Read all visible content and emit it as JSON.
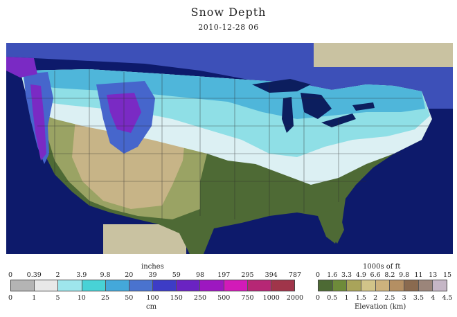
{
  "title": "Snow Depth",
  "subtitle": "2010-12-28 06",
  "snow_legend": {
    "top_unit": "inches",
    "bottom_unit": "cm",
    "top_ticks": [
      "0",
      "0.39",
      "2",
      "3.9",
      "9.8",
      "20",
      "39",
      "59",
      "98",
      "197",
      "295",
      "394",
      "787"
    ],
    "bottom_ticks": [
      "0",
      "1",
      "5",
      "10",
      "25",
      "50",
      "100",
      "150",
      "250",
      "500",
      "750",
      "1000",
      "2000"
    ],
    "colors": [
      "#b4b4b4",
      "#e8e8e8",
      "#9ee6ec",
      "#48d2d6",
      "#44a8da",
      "#4a73cf",
      "#3d3cc6",
      "#6a23c2",
      "#9d17c0",
      "#d21ab8",
      "#b62775",
      "#a0354a"
    ]
  },
  "elevation_legend": {
    "top_unit": "1000s of ft",
    "bottom_unit": "Elevation (km)",
    "top_ticks": [
      "0",
      "1.6",
      "3.3",
      "4.9",
      "6.6",
      "8.2",
      "9.8",
      "11",
      "13",
      "15"
    ],
    "bottom_ticks": [
      "0",
      "0.5",
      "1",
      "1.5",
      "2",
      "2.5",
      "3",
      "3.5",
      "4",
      "4.5"
    ],
    "colors": [
      "#4d6a34",
      "#6e8b3a",
      "#a9a45a",
      "#d2c489",
      "#cdb27d",
      "#b48f63",
      "#8a6a4f",
      "#9b857a",
      "#c5b6c6"
    ]
  },
  "map": {
    "colors": {
      "ocean": "#0d1a6b",
      "outside_land": "#c9c2a1",
      "lowland": "#4e6a35",
      "plains": "#9aa364",
      "desert": "#c7b487",
      "snow_light": "#dcf0f3",
      "snow_shallow": "#8fdfe6",
      "snow_medium": "#4fb6da",
      "snow_deep": "#4666cc",
      "snow_very_deep": "#7a2ac4",
      "lake": "#0c1e5e",
      "border": "#2a2a2a"
    }
  }
}
